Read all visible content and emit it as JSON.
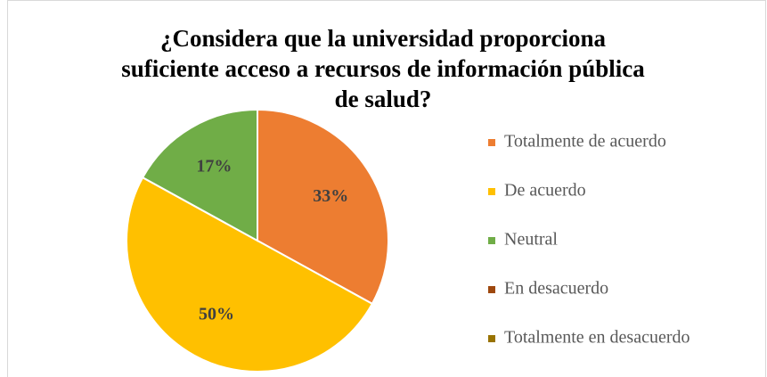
{
  "chart_data": {
    "type": "pie",
    "title": "¿Considera que la universidad proporciona suficiente acceso a recursos de información pública de salud?",
    "categories": [
      "Totalmente de acuerdo",
      "De acuerdo",
      "Neutral",
      "En desacuerdo",
      "Totalmente en desacuerdo"
    ],
    "values": [
      33,
      50,
      17,
      0,
      0
    ],
    "value_labels": [
      "33%",
      "50%",
      "17%",
      null,
      null
    ],
    "colors": [
      "#ED7D31",
      "#FFC000",
      "#70AD47",
      "#9E480E",
      "#997300"
    ],
    "legend": "right"
  }
}
